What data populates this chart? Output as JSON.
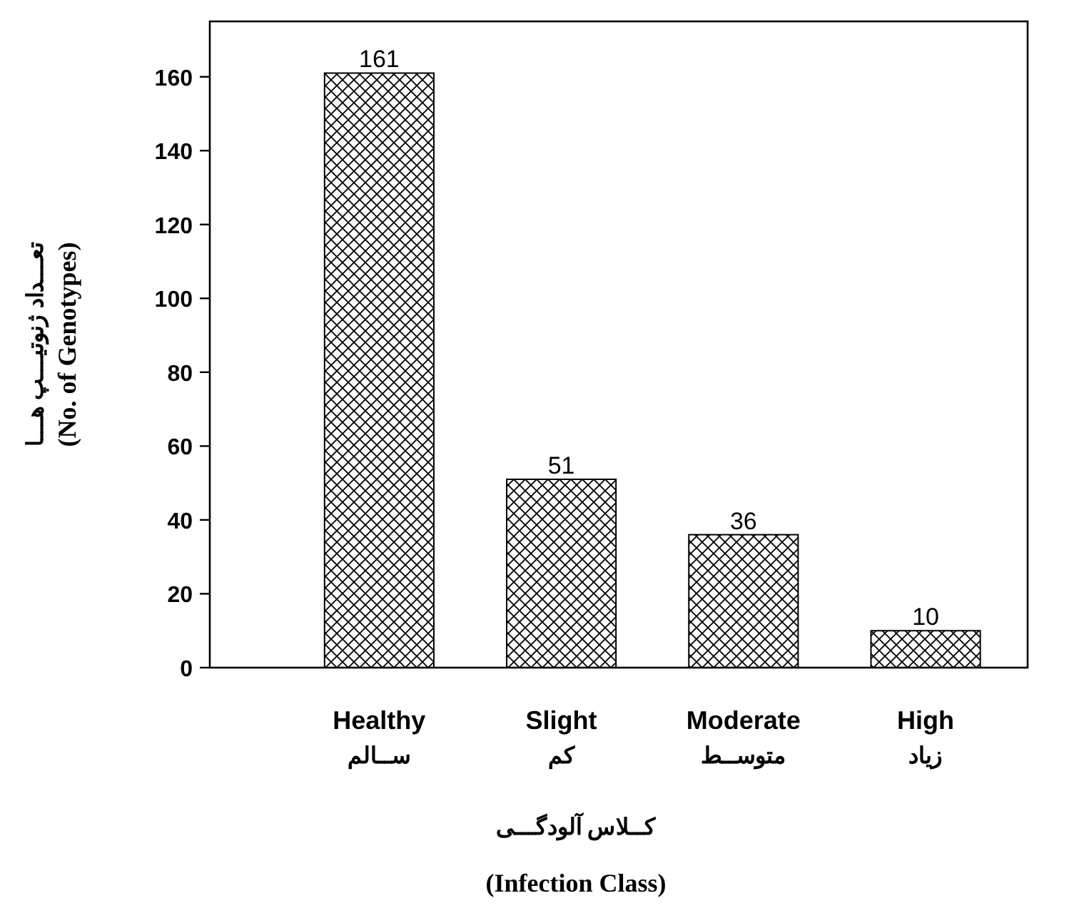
{
  "chart_data": {
    "type": "bar",
    "categories": [
      "Healthy\nســالم",
      "Slight\nکم",
      "Moderate\nمتوســط",
      "High\nزیاد"
    ],
    "values": [
      161,
      51,
      36,
      10
    ],
    "color": "#000000",
    "ylim": [
      0,
      175
    ],
    "yticks": [
      0,
      20,
      40,
      60,
      80,
      100,
      120,
      140,
      160
    ],
    "xlabel": "کــلاس آلودگـــی\n(Infection Class)",
    "ylabel": "تعـــداد ژنوتیـــپ هـــا\n(No. of Genotypes)",
    "data_labels": true
  }
}
